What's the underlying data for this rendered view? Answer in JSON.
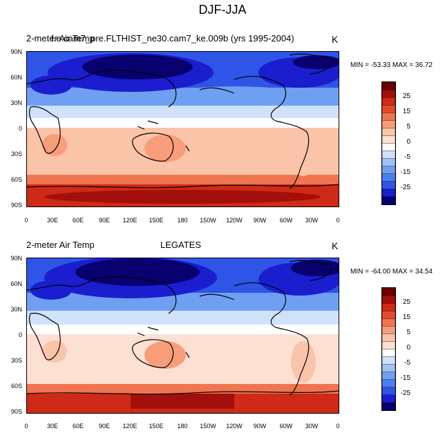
{
  "figure_title": "DJF-JJA",
  "colors": {
    "levels": [
      "#08006f",
      "#1a1ecf",
      "#2f55e6",
      "#4a7fef",
      "#6f9ff3",
      "#9fc2f7",
      "#cfe1fb",
      "#ffffff",
      "#fde0d2",
      "#fbc3a8",
      "#f79d7a",
      "#f0744f",
      "#e54a2c",
      "#cf2a16",
      "#a30f0a",
      "#6e0000"
    ],
    "coast": "#000000"
  },
  "chart_data": [
    {
      "type": "heatmap",
      "title_left": "2-meter Air Temp",
      "title_center": "f.e.cam7_pre.FLTHIST_ne30.cam7_ke.009b (yrs 1995-2004)",
      "units": "K",
      "minmax_text": "MIN = -53.33  MAX =  36.72",
      "min": -53.33,
      "max": 36.72,
      "xticks": [
        "0",
        "30E",
        "60E",
        "90E",
        "120E",
        "150E",
        "180",
        "150W",
        "120W",
        "90W",
        "60W",
        "30W",
        "0"
      ],
      "yticks": [
        "90N",
        "60N",
        "30N",
        "0",
        "30S",
        "60S",
        "90S"
      ],
      "colorbar_labels": [
        "25",
        "15",
        "5",
        "0",
        "-5",
        "-15",
        "-25"
      ]
    },
    {
      "type": "heatmap",
      "title_left": "2-meter Air Temp",
      "title_center": "LEGATES",
      "units": "K",
      "minmax_text": "MIN = -64.00  MAX =  34.54",
      "min": -64.0,
      "max": 34.54,
      "xticks": [
        "0",
        "30E",
        "60E",
        "90E",
        "120E",
        "150E",
        "180",
        "150W",
        "120W",
        "90W",
        "60W",
        "30W",
        "0"
      ],
      "yticks": [
        "90N",
        "60N",
        "30N",
        "0",
        "30S",
        "60S",
        "90S"
      ],
      "colorbar_labels": [
        "25",
        "15",
        "5",
        "0",
        "-5",
        "-15",
        "-25"
      ]
    }
  ]
}
